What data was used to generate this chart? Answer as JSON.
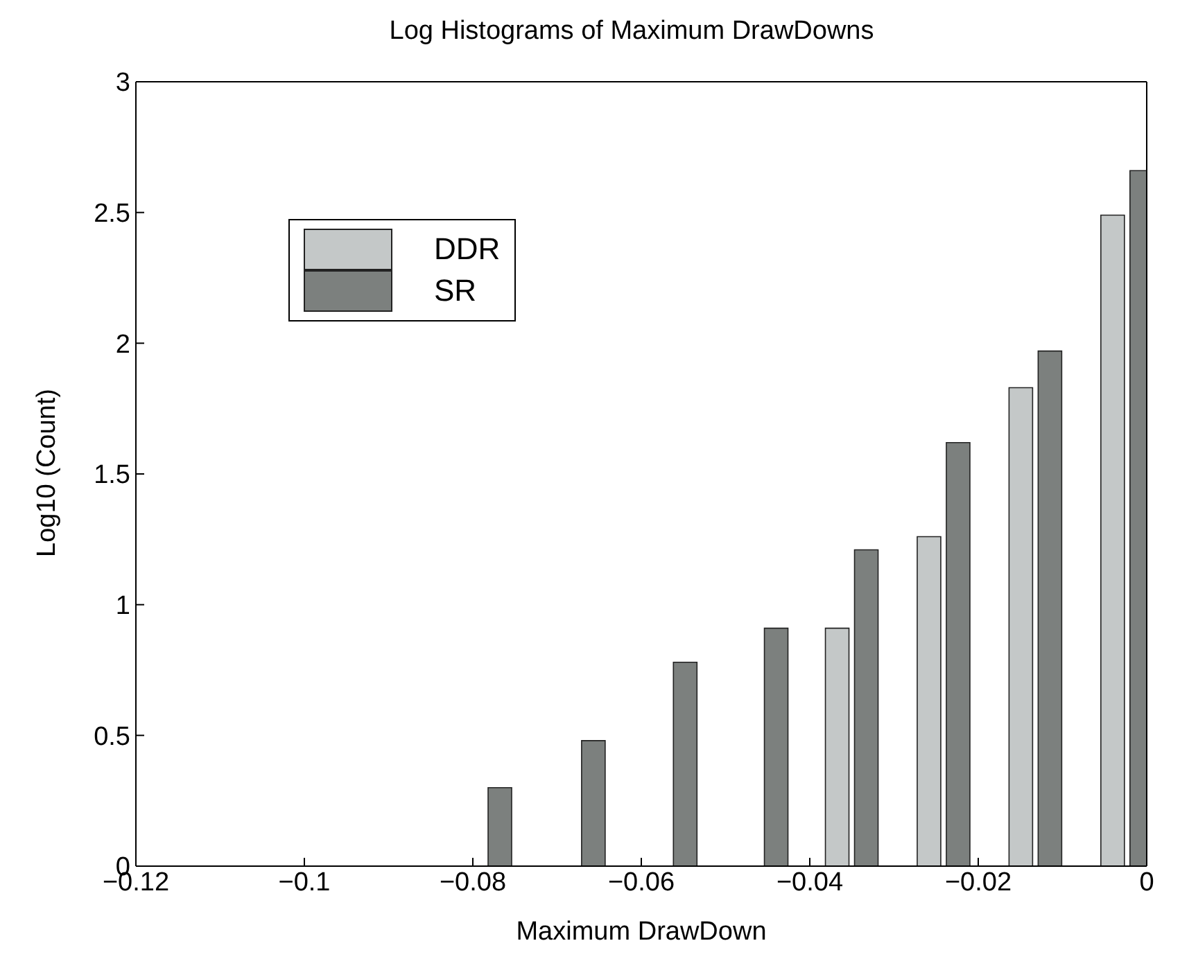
{
  "chart_data": {
    "type": "bar",
    "title": "Log Histograms of Maximum DrawDowns",
    "xlabel": "Maximum DrawDown",
    "ylabel": "Log10 (Count)",
    "x": [
      -0.0786,
      -0.0675,
      -0.0566,
      -0.0458,
      -0.0351,
      -0.0242,
      -0.0133,
      -0.0024
    ],
    "series": [
      {
        "name": "DDR",
        "color": "#c4c8c8",
        "values": [
          null,
          null,
          null,
          null,
          0.91,
          1.26,
          1.83,
          2.49
        ]
      },
      {
        "name": "SR",
        "color": "#7c807e",
        "values": [
          0.3,
          0.48,
          0.78,
          0.91,
          1.21,
          1.62,
          1.97,
          2.66
        ]
      }
    ],
    "xlim": [
      -0.12,
      0
    ],
    "xticks": [
      -0.12,
      -0.1,
      -0.08,
      -0.06,
      -0.04,
      -0.02,
      0
    ],
    "ylim": [
      0,
      3
    ],
    "yticks": [
      0,
      0.5,
      1,
      1.5,
      2,
      2.5,
      3
    ],
    "grid": false,
    "legend": "top left"
  }
}
